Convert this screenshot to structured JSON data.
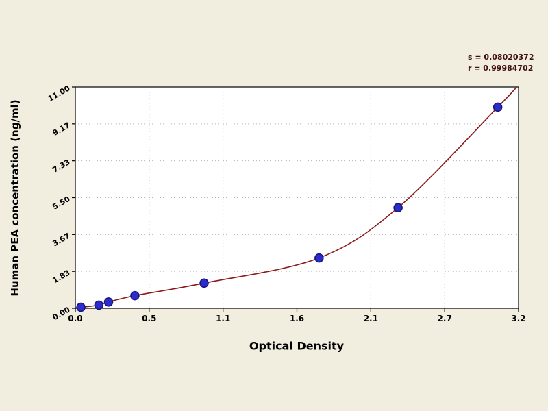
{
  "chart_data": {
    "type": "scatter",
    "title": "",
    "xlabel": "Optical Density",
    "ylabel": "Human PEA concentration (ng/ml)",
    "xlim": [
      0,
      3.2
    ],
    "ylim": [
      0,
      11
    ],
    "x_ticks": [
      0,
      0.5333,
      1.0667,
      1.6,
      2.1333,
      2.6667,
      3.2
    ],
    "x_tick_labels": [
      "0.0",
      "0.5",
      "1.1",
      "1.6",
      "2.1",
      "2.7",
      "3.2"
    ],
    "y_ticks": [
      0,
      1.8333,
      3.6667,
      5.5,
      7.3333,
      9.1667,
      11
    ],
    "y_tick_labels": [
      "0.00",
      "1.83",
      "3.67",
      "5.50",
      "7.33",
      "9.17",
      "11.00"
    ],
    "grid": true,
    "legend": "none",
    "points": [
      {
        "x": 0.04,
        "y": 0.05
      },
      {
        "x": 0.17,
        "y": 0.156
      },
      {
        "x": 0.24,
        "y": 0.312
      },
      {
        "x": 0.43,
        "y": 0.625
      },
      {
        "x": 0.93,
        "y": 1.25
      },
      {
        "x": 1.76,
        "y": 2.5
      },
      {
        "x": 2.33,
        "y": 5.0
      },
      {
        "x": 3.05,
        "y": 10.0
      }
    ],
    "curve_start": {
      "x": 0.0,
      "y": 0.02
    },
    "curve_end": {
      "x": 3.2,
      "y": 11.1
    },
    "stats": {
      "s_label": "s = 0.08020372",
      "r_label": "r = 0.99984702"
    },
    "colors": {
      "background": "#f1eddf",
      "plot_bg": "#ffffff",
      "grid": "#b5b5b5",
      "curve": "#8b1a1a",
      "point_fill": "#2c2ccc",
      "point_edge": "#15157a",
      "axis": "#000000",
      "text": "#000000"
    }
  }
}
